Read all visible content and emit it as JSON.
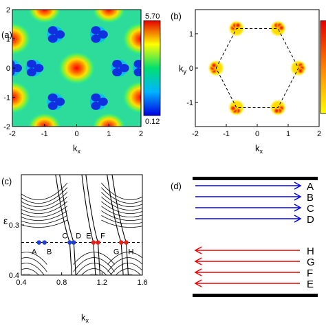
{
  "panels": {
    "a": {
      "label": "(a)",
      "xlabel": "kx",
      "ylabel": "ky",
      "xticks": [
        "-2",
        "-1",
        "0",
        "1",
        "2"
      ],
      "yticks": [
        "-2",
        "-1",
        "0",
        "1",
        "2"
      ],
      "colorbar": {
        "max_label": "5.70",
        "min_label": "0.12"
      }
    },
    "b": {
      "label": "(b)",
      "xlabel": "kx",
      "ylabel": "ky",
      "xticks": [
        "-2",
        "-1",
        "0",
        "1",
        "2"
      ],
      "yticks": [
        "-1",
        "0",
        "1"
      ]
    },
    "c": {
      "label": "(c)",
      "xlabel": "kx",
      "ylabel": "ε",
      "xticks": [
        "0.4",
        "0.8",
        "1.2",
        "1.6"
      ],
      "yticks": [
        "0.3",
        "0.4"
      ],
      "points": [
        "A",
        "B",
        "C",
        "D",
        "E",
        "F",
        "G",
        "H"
      ]
    },
    "d": {
      "label": "(d)",
      "top_labels": [
        "A",
        "B",
        "C",
        "D"
      ],
      "bottom_labels": [
        "H",
        "G",
        "F",
        "E"
      ]
    }
  },
  "colors": {
    "forward": "#0000ee",
    "backward": "#ee0000",
    "blue_point": "#1f3fd6",
    "red_point": "#e8201a"
  },
  "chart_data": [
    {
      "type": "heatmap",
      "panel": "a",
      "title": "",
      "xlabel": "kx",
      "ylabel": "ky",
      "xlim": [
        -2,
        2
      ],
      "ylim": [
        -2,
        2
      ],
      "colorbar_range": [
        0.12,
        5.7
      ]
    },
    {
      "type": "heatmap",
      "panel": "b",
      "title": "",
      "xlabel": "kx",
      "ylabel": "ky",
      "xlim": [
        -2,
        2
      ],
      "ylim": [
        -1.7,
        1.7
      ],
      "hexagon_vertices_kx_ky": [
        [
          -1.33,
          0
        ],
        [
          -0.67,
          1.15
        ],
        [
          0.67,
          1.15
        ],
        [
          1.33,
          0
        ],
        [
          0.67,
          -1.15
        ],
        [
          -0.67,
          -1.15
        ]
      ]
    },
    {
      "type": "line",
      "panel": "c",
      "title": "",
      "xlabel": "kx",
      "ylabel": "ε",
      "xlim": [
        0.4,
        1.6
      ],
      "ylim": [
        0.4,
        0.2
      ],
      "fermi_level": 0.335,
      "points": [
        {
          "name": "A",
          "x": 0.575,
          "y": 0.335
        },
        {
          "name": "B",
          "x": 0.63,
          "y": 0.335
        },
        {
          "name": "C",
          "x": 0.88,
          "y": 0.335
        },
        {
          "name": "D",
          "x": 0.92,
          "y": 0.335
        },
        {
          "name": "E",
          "x": 1.115,
          "y": 0.335
        },
        {
          "name": "F",
          "x": 1.16,
          "y": 0.335
        },
        {
          "name": "G",
          "x": 1.39,
          "y": 0.335
        },
        {
          "name": "H",
          "x": 1.44,
          "y": 0.335
        }
      ]
    }
  ]
}
